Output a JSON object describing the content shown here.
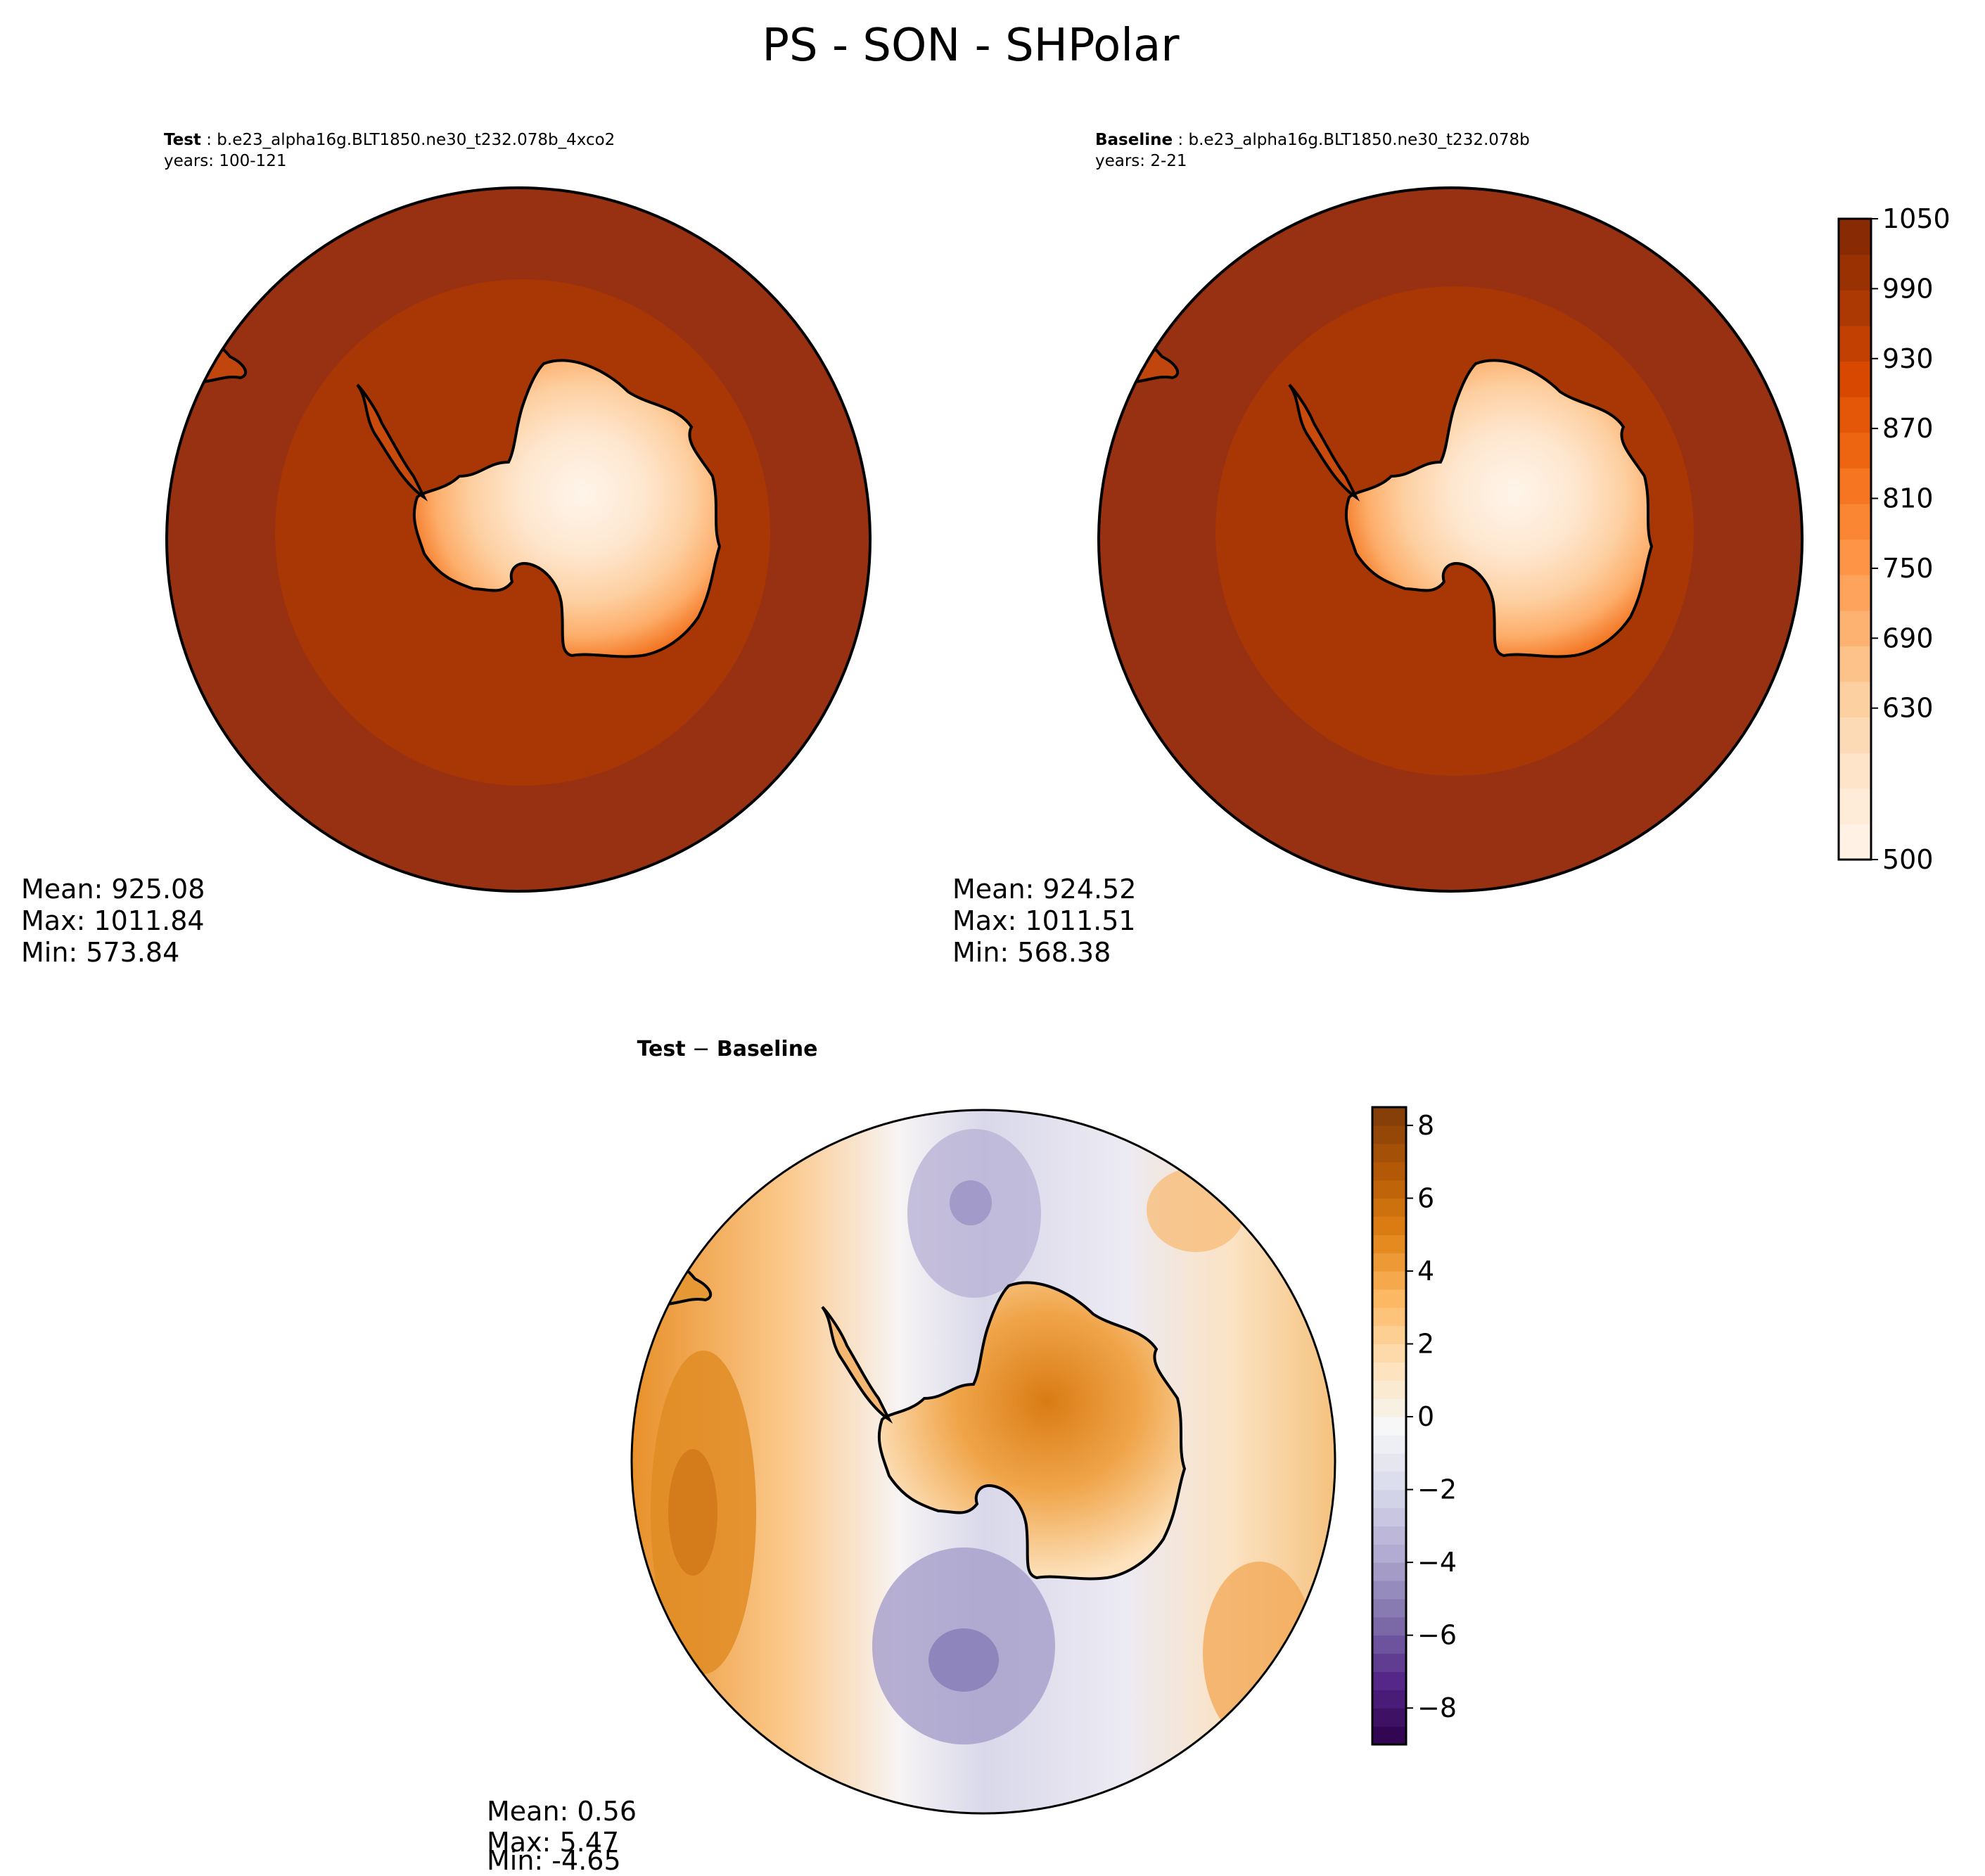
{
  "figure": {
    "title": "PS - SON - SHPolar"
  },
  "panels": {
    "test": {
      "label": "Test",
      "case": "b.e23_alpha16g.BLT1850.ne30_t232.078b_4xco2",
      "years": "years: 100-121",
      "stats": {
        "mean": "Mean: 925.08",
        "max": "Max: 1011.84",
        "min": "Min: 573.84"
      }
    },
    "baseline": {
      "label": "Baseline",
      "case": "b.e23_alpha16g.BLT1850.ne30_t232.078b",
      "years": "years: 2-21",
      "stats": {
        "mean": "Mean: 924.52",
        "max": "Max: 1011.51",
        "min": "Min: 568.38"
      }
    },
    "diff": {
      "title_left": "Test",
      "title_sep": " − ",
      "title_right": "Baseline",
      "stats": {
        "mean": "Mean:  0.56",
        "max": "Max:  5.47",
        "min": "Min: -4.65"
      }
    }
  },
  "chart_data": [
    {
      "type": "heatmap",
      "panel": "Test",
      "projection": "south-polar-stereographic",
      "colormap": "Oranges",
      "range": [
        500,
        1050
      ],
      "colorbar_ticks": [
        "500",
        "630",
        "690",
        "750",
        "810",
        "870",
        "930",
        "990",
        "1050"
      ],
      "mean": 925.08,
      "max": 1011.84,
      "min": 573.84
    },
    {
      "type": "heatmap",
      "panel": "Baseline",
      "projection": "south-polar-stereographic",
      "colormap": "Oranges",
      "range": [
        500,
        1050
      ],
      "mean": 924.52,
      "max": 1011.51,
      "min": 568.38
    },
    {
      "type": "heatmap",
      "panel": "Test − Baseline",
      "projection": "south-polar-stereographic",
      "colormap": "PuOr_r",
      "range": [
        -9,
        8.5
      ],
      "colorbar_ticks": [
        "−8",
        "−6",
        "−4",
        "−2",
        "0",
        "2",
        "4",
        "6",
        "8"
      ],
      "mean": 0.56,
      "max": 5.47,
      "min": -4.65
    }
  ],
  "colorbars": {
    "main": {
      "ticks": [
        "500",
        "630",
        "690",
        "750",
        "810",
        "870",
        "930",
        "990",
        "1050"
      ],
      "tick_values": [
        500,
        630,
        690,
        750,
        810,
        870,
        930,
        990,
        1050
      ],
      "vmin": 500,
      "vmax": 1050,
      "levels": 18,
      "colors": [
        "#fff5eb",
        "#fee6ce",
        "#fdd0a2",
        "#fdae6b",
        "#fd8d3c",
        "#f16913",
        "#d94801",
        "#a63603",
        "#7f2704"
      ]
    },
    "diff": {
      "ticks": [
        "−8",
        "−6",
        "−4",
        "−2",
        "0",
        "2",
        "4",
        "6",
        "8"
      ],
      "tick_values": [
        -8,
        -6,
        -4,
        -2,
        0,
        2,
        4,
        6,
        8
      ],
      "vmin": -9,
      "vmax": 8.5,
      "levels": 35,
      "colors": [
        "#2d004b",
        "#542788",
        "#8073ac",
        "#b2abd2",
        "#d8daeb",
        "#f7f7f7",
        "#fee0b6",
        "#fdb863",
        "#e08214",
        "#b35806",
        "#7f3b08"
      ]
    }
  }
}
